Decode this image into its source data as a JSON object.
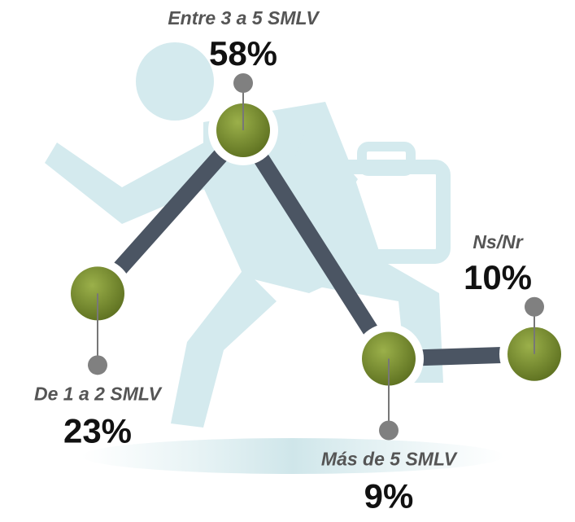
{
  "chart_data": {
    "type": "line",
    "categories": [
      "De 1 a 2 SMLV",
      "Entre 3 a 5 SMLV",
      "Más de 5 SMLV",
      "Ns/Nr"
    ],
    "values": [
      23,
      58,
      9,
      10
    ],
    "value_labels": [
      "23%",
      "58%",
      "9%",
      "10%"
    ],
    "color": "#4b5563",
    "marker_color": "#7a8f2e"
  }
}
